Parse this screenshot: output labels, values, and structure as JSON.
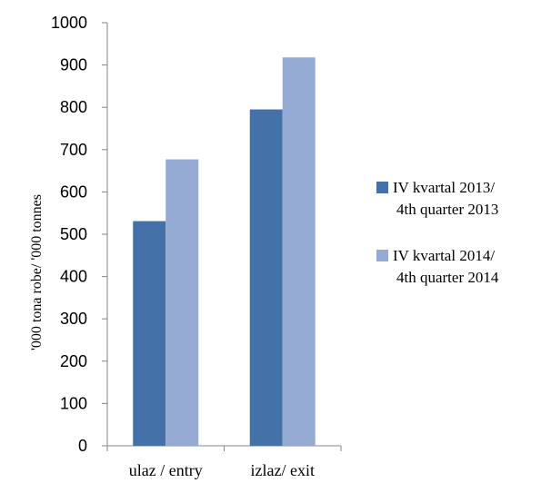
{
  "chart_data": {
    "type": "bar",
    "categories": [
      "ulaz / entry",
      "izlaz/ exit"
    ],
    "series": [
      {
        "name": "IV kvartal 2013/ 4th quarter 2013",
        "name_lines": [
          "IV kvartal 2013/",
          "4th quarter 2013"
        ],
        "values": [
          531,
          795
        ],
        "color": "#4472a8"
      },
      {
        "name": "IV kvartal 2014/ 4th quarter 2014",
        "name_lines": [
          "IV kvartal 2014/",
          "4th quarter 2014"
        ],
        "values": [
          677,
          918
        ],
        "color": "#95abd3"
      }
    ],
    "ylabel": "'000 tona robe/ '000 tonnes",
    "xlabel": "",
    "title": "",
    "ylim": [
      0,
      1000
    ],
    "yticks": [
      "0",
      "100",
      "200",
      "300",
      "400",
      "500",
      "600",
      "700",
      "800",
      "900",
      "1000"
    ],
    "grid": false,
    "legend_position": "right"
  }
}
